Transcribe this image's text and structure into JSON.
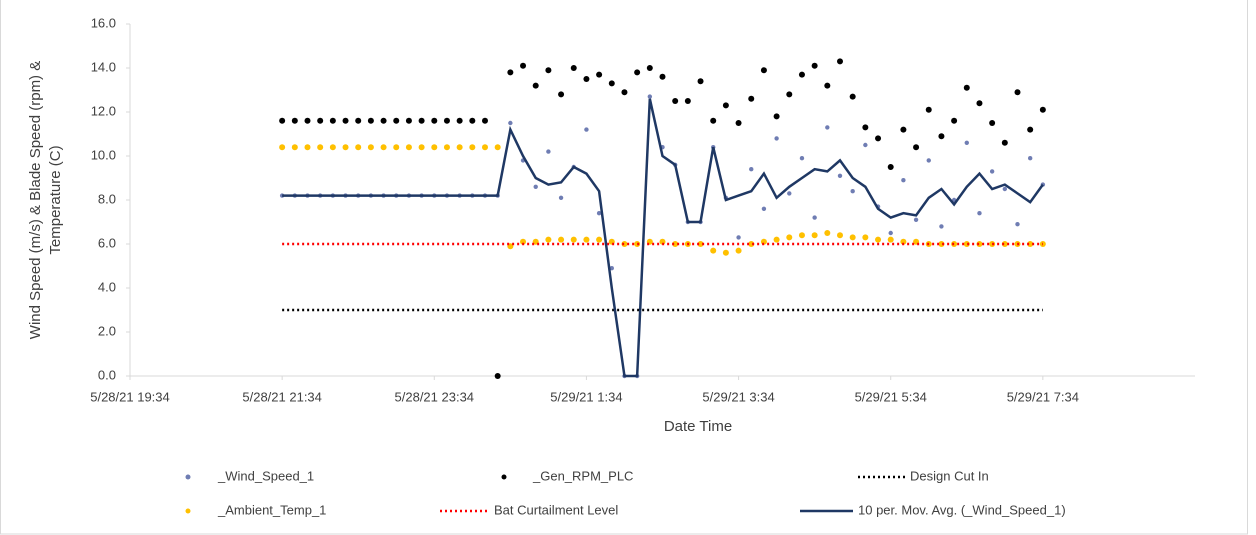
{
  "chart_data": {
    "type": "scatter",
    "xlabel": "Date Time",
    "ylabel": [
      "Wind Speed (m/s) & Blade Speed (rpm) &",
      "Temperature (C)"
    ],
    "xlim": [
      "5/28/21 19:34",
      "5/29/21 9:34"
    ],
    "xticks": [
      "5/28/21 19:34",
      "5/28/21 21:34",
      "5/28/21 23:34",
      "5/29/21 1:34",
      "5/29/21 3:34",
      "5/29/21 5:34",
      "5/29/21 7:34"
    ],
    "ylim": [
      0,
      16
    ],
    "yticks": [
      {
        "value": 0,
        "label": "0.0"
      },
      {
        "value": 2,
        "label": "2.0"
      },
      {
        "value": 4,
        "label": "4.0"
      },
      {
        "value": 6,
        "label": "6.0"
      },
      {
        "value": 8,
        "label": "8.0"
      },
      {
        "value": 10,
        "label": "10.0"
      },
      {
        "value": 12,
        "label": "12.0"
      },
      {
        "value": 14,
        "label": "14.0"
      },
      {
        "value": 16,
        "label": "16.0"
      }
    ],
    "grid": false,
    "legend": "bottom",
    "x": [
      "5/28/21 21:34",
      "5/28/21 21:44",
      "5/28/21 21:54",
      "5/28/21 22:04",
      "5/28/21 22:14",
      "5/28/21 22:24",
      "5/28/21 22:34",
      "5/28/21 22:44",
      "5/28/21 22:54",
      "5/28/21 23:04",
      "5/28/21 23:14",
      "5/28/21 23:24",
      "5/28/21 23:34",
      "5/28/21 23:44",
      "5/28/21 23:54",
      "5/29/21 0:04",
      "5/29/21 0:14",
      "5/29/21 0:24",
      "5/29/21 0:34",
      "5/29/21 0:44",
      "5/29/21 0:54",
      "5/29/21 1:04",
      "5/29/21 1:14",
      "5/29/21 1:24",
      "5/29/21 1:34",
      "5/29/21 1:44",
      "5/29/21 1:54",
      "5/29/21 2:04",
      "5/29/21 2:14",
      "5/29/21 2:24",
      "5/29/21 2:34",
      "5/29/21 2:44",
      "5/29/21 2:54",
      "5/29/21 3:04",
      "5/29/21 3:14",
      "5/29/21 3:24",
      "5/29/21 3:34",
      "5/29/21 3:44",
      "5/29/21 3:54",
      "5/29/21 4:04",
      "5/29/21 4:14",
      "5/29/21 4:24",
      "5/29/21 4:34",
      "5/29/21 4:44",
      "5/29/21 4:54",
      "5/29/21 5:04",
      "5/29/21 5:14",
      "5/29/21 5:24",
      "5/29/21 5:34",
      "5/29/21 5:44",
      "5/29/21 5:54",
      "5/29/21 6:04",
      "5/29/21 6:14",
      "5/29/21 6:24",
      "5/29/21 6:34",
      "5/29/21 6:44",
      "5/29/21 6:54",
      "5/29/21 7:04",
      "5/29/21 7:14",
      "5/29/21 7:24",
      "5/29/21 7:34"
    ],
    "series": [
      {
        "name": "_Wind_Speed_1",
        "style": "dots",
        "color": "#6f7db3",
        "values": [
          8.2,
          8.2,
          8.2,
          8.2,
          8.2,
          8.2,
          8.2,
          8.2,
          8.2,
          8.2,
          8.2,
          8.2,
          8.2,
          8.2,
          8.2,
          8.2,
          8.2,
          8.2,
          11.5,
          9.8,
          8.6,
          10.2,
          8.1,
          9.5,
          11.2,
          7.4,
          4.9,
          0,
          0,
          12.7,
          10.4,
          9.6,
          7,
          7,
          10.4,
          8.1,
          6.3,
          9.4,
          7.6,
          10.8,
          8.3,
          9.9,
          7.2,
          11.3,
          9.1,
          8.4,
          10.5,
          7.7,
          6.5,
          8.9,
          7.1,
          9.8,
          6.8,
          8,
          10.6,
          7.4,
          9.3,
          8.5,
          6.9,
          9.9,
          8.7
        ]
      },
      {
        "name": "_Gen_RPM_PLC",
        "style": "dots",
        "color": "#000000",
        "values": [
          11.6,
          11.6,
          11.6,
          11.6,
          11.6,
          11.6,
          11.6,
          11.6,
          11.6,
          11.6,
          11.6,
          11.6,
          11.6,
          11.6,
          11.6,
          11.6,
          11.6,
          0,
          13.8,
          14.1,
          13.2,
          13.9,
          12.8,
          14,
          13.5,
          13.7,
          13.3,
          12.9,
          13.8,
          14,
          13.6,
          12.5,
          12.5,
          13.4,
          11.6,
          12.3,
          11.5,
          12.6,
          13.9,
          11.8,
          12.8,
          13.7,
          14.1,
          13.2,
          14.3,
          12.7,
          11.3,
          10.8,
          9.5,
          11.2,
          10.4,
          12.1,
          10.9,
          11.6,
          13.1,
          12.4,
          11.5,
          10.6,
          12.9,
          11.2,
          12.1
        ]
      },
      {
        "name": "Design Cut In",
        "style": "dotted-line",
        "color": "#000000",
        "x": [
          "5/28/21 21:34",
          "5/29/21 7:34"
        ],
        "values": [
          3,
          3
        ]
      },
      {
        "name": "_Ambient_Temp_1",
        "style": "dots",
        "color": "#ffc000",
        "values": [
          10.4,
          10.4,
          10.4,
          10.4,
          10.4,
          10.4,
          10.4,
          10.4,
          10.4,
          10.4,
          10.4,
          10.4,
          10.4,
          10.4,
          10.4,
          10.4,
          10.4,
          10.4,
          5.9,
          6.1,
          6.1,
          6.2,
          6.2,
          6.2,
          6.2,
          6.2,
          6.1,
          6,
          6,
          6.1,
          6.1,
          6,
          6,
          6,
          5.7,
          5.6,
          5.7,
          6,
          6.1,
          6.2,
          6.3,
          6.4,
          6.4,
          6.5,
          6.4,
          6.3,
          6.3,
          6.2,
          6.2,
          6.1,
          6.1,
          6,
          6,
          6,
          6,
          6,
          6,
          6,
          6,
          6,
          6
        ]
      },
      {
        "name": "Bat Curtailment Level",
        "style": "dotted-line",
        "color": "#ff0000",
        "x": [
          "5/28/21 21:34",
          "5/29/21 7:34"
        ],
        "values": [
          6,
          6
        ]
      },
      {
        "name": "10 per. Mov. Avg. (_Wind_Speed_1)",
        "style": "line",
        "color": "#1f3864",
        "values": [
          8.2,
          8.2,
          8.2,
          8.2,
          8.2,
          8.2,
          8.2,
          8.2,
          8.2,
          8.2,
          8.2,
          8.2,
          8.2,
          8.2,
          8.2,
          8.2,
          8.2,
          8.2,
          11.2,
          10,
          9,
          8.7,
          8.8,
          9.5,
          9.2,
          8.4,
          4,
          0,
          0,
          12.6,
          10,
          9.6,
          7,
          7,
          10.4,
          8,
          8.2,
          8.4,
          9.2,
          8.1,
          8.6,
          9,
          9.4,
          9.3,
          9.8,
          9,
          8.6,
          7.6,
          7.2,
          7.4,
          7.3,
          8.1,
          8.5,
          7.8,
          8.6,
          9.2,
          8.5,
          8.7,
          8.3,
          7.9,
          8.7
        ]
      }
    ]
  }
}
